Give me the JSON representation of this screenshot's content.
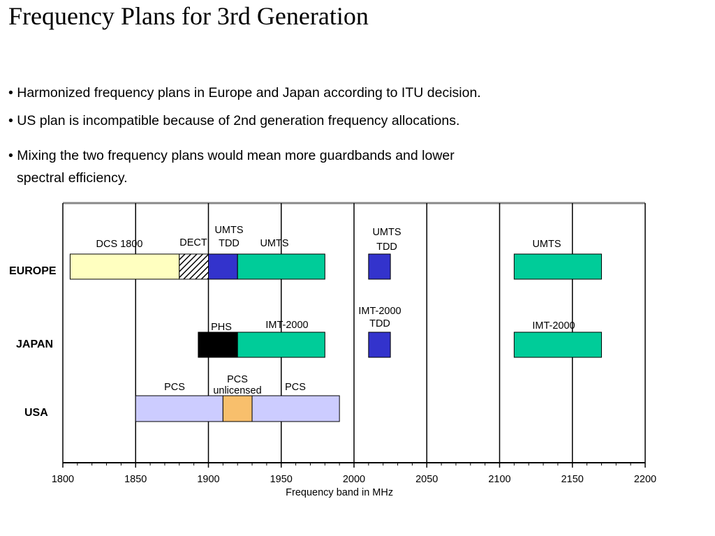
{
  "slide": {
    "title": "Frequency Plans for 3rd Generation",
    "bullets": [
      "• Harmonized frequency plans in Europe and Japan according to ITU decision.",
      "• US plan is incompatible because of 2nd generation frequency allocations.",
      "• Mixing the two frequency plans would mean more guardbands and lower",
      "spectral efficiency."
    ]
  },
  "chart_data": {
    "type": "bar",
    "orientation": "horizontal-ranges",
    "xlabel": "Frequency band in MHz",
    "xlim": [
      1800,
      2200
    ],
    "xticks": [
      1800,
      1850,
      1900,
      1950,
      2000,
      2050,
      2100,
      2150,
      2200
    ],
    "grid": true,
    "rows": [
      "EUROPE",
      "JAPAN",
      "USA"
    ],
    "bands": [
      {
        "row": "EUROPE",
        "label": "DCS 1800",
        "start": 1805,
        "end": 1880,
        "fill": "#ffffc0"
      },
      {
        "row": "EUROPE",
        "label": "DECT",
        "start": 1880,
        "end": 1900,
        "fill": "hatch"
      },
      {
        "row": "EUROPE",
        "label": "UMTS TDD",
        "start": 1900,
        "end": 1920,
        "fill": "#3333cc"
      },
      {
        "row": "EUROPE",
        "label": "UMTS",
        "start": 1920,
        "end": 1980,
        "fill": "#00cc99"
      },
      {
        "row": "EUROPE",
        "label": "UMTS TDD",
        "start": 2010,
        "end": 2025,
        "fill": "#3333cc"
      },
      {
        "row": "EUROPE",
        "label": "UMTS",
        "start": 2110,
        "end": 2170,
        "fill": "#00cc99"
      },
      {
        "row": "JAPAN",
        "label": "PHS",
        "start": 1893,
        "end": 1920,
        "fill": "#000000"
      },
      {
        "row": "JAPAN",
        "label": "IMT-2000",
        "start": 1920,
        "end": 1980,
        "fill": "#00cc99"
      },
      {
        "row": "JAPAN",
        "label": "IMT-2000 TDD",
        "start": 2010,
        "end": 2025,
        "fill": "#3333cc"
      },
      {
        "row": "JAPAN",
        "label": "IMT-2000",
        "start": 2110,
        "end": 2170,
        "fill": "#00cc99"
      },
      {
        "row": "USA",
        "label": "PCS",
        "start": 1850,
        "end": 1910,
        "fill": "#ccccff"
      },
      {
        "row": "USA",
        "label": "PCS unlicensed",
        "start": 1910,
        "end": 1930,
        "fill": "#f8bf6c"
      },
      {
        "row": "USA",
        "label": "PCS",
        "start": 1930,
        "end": 1990,
        "fill": "#ccccff"
      }
    ]
  }
}
